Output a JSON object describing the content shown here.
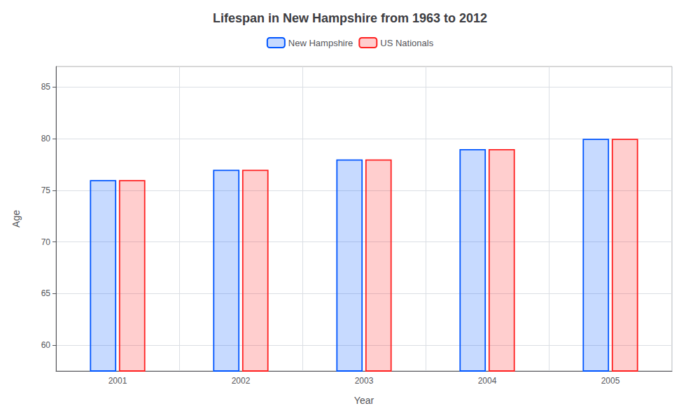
{
  "chart_data": {
    "type": "bar",
    "title": "Lifespan in New Hampshire from 1963 to 2012",
    "x_label": "Year",
    "y_label": "Age",
    "categories": [
      "2001",
      "2002",
      "2003",
      "2004",
      "2005"
    ],
    "series": [
      {
        "name": "New Hampshire",
        "color": "#0055ff",
        "values": [
          76.0,
          77.0,
          78.0,
          79.0,
          80.0
        ]
      },
      {
        "name": "US Nationals",
        "color": "#ff2020",
        "values": [
          76.0,
          77.0,
          78.0,
          79.0,
          80.0
        ]
      }
    ],
    "ylim": [
      57.5,
      87
    ],
    "yticks": [
      60,
      65,
      70,
      75,
      80,
      85
    ],
    "grid": true,
    "legend": "top"
  }
}
